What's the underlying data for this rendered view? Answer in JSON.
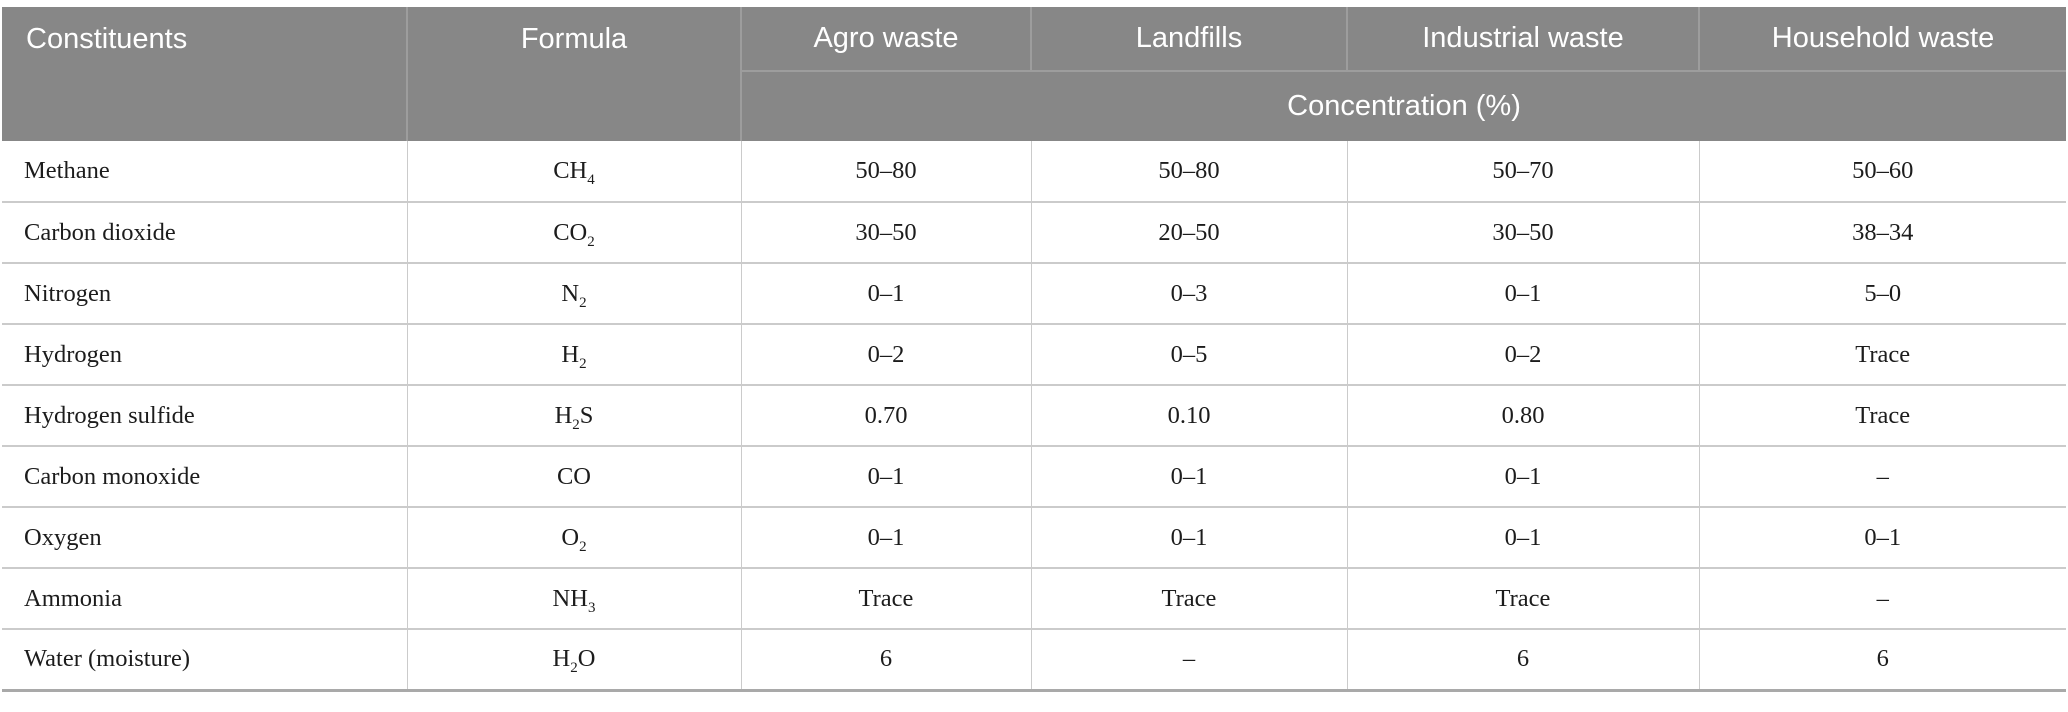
{
  "colors": {
    "header-bg": "#878787",
    "header-divider": "#9d9d9d",
    "header-text": "#ffffff",
    "body-text": "#1c1c1c",
    "grid-line": "#cbcbcb",
    "bottom-border": "#a9a9a9",
    "page-bg": "#ffffff"
  },
  "table": {
    "columns": [
      "Constituents",
      "Formula",
      "Agro waste",
      "Landfills",
      "Industrial waste",
      "Household waste"
    ],
    "subheader": "Concentration (%)",
    "rows": [
      {
        "constituent": "Methane",
        "formula": [
          {
            "t": "CH"
          },
          {
            "t": "4",
            "sub": true
          }
        ],
        "values": [
          "50–80",
          "50–80",
          "50–70",
          "50–60"
        ]
      },
      {
        "constituent": "Carbon dioxide",
        "formula": [
          {
            "t": "CO"
          },
          {
            "t": "2",
            "sub": true
          }
        ],
        "values": [
          "30–50",
          "20–50",
          "30–50",
          "38–34"
        ]
      },
      {
        "constituent": "Nitrogen",
        "formula": [
          {
            "t": "N"
          },
          {
            "t": "2",
            "sub": true
          }
        ],
        "values": [
          "0–1",
          "0–3",
          "0–1",
          "5–0"
        ]
      },
      {
        "constituent": "Hydrogen",
        "formula": [
          {
            "t": "H"
          },
          {
            "t": "2",
            "sub": true
          }
        ],
        "values": [
          "0–2",
          "0–5",
          "0–2",
          "Trace"
        ]
      },
      {
        "constituent": "Hydrogen sulfide",
        "formula": [
          {
            "t": "H"
          },
          {
            "t": "2",
            "sub": true
          },
          {
            "t": "S"
          }
        ],
        "values": [
          "0.70",
          "0.10",
          "0.80",
          "Trace"
        ]
      },
      {
        "constituent": "Carbon monoxide",
        "formula": [
          {
            "t": "CO"
          }
        ],
        "values": [
          "0–1",
          "0–1",
          "0–1",
          "–"
        ]
      },
      {
        "constituent": "Oxygen",
        "formula": [
          {
            "t": "O"
          },
          {
            "t": "2",
            "sub": true
          }
        ],
        "values": [
          "0–1",
          "0–1",
          "0–1",
          "0–1"
        ]
      },
      {
        "constituent": "Ammonia",
        "formula": [
          {
            "t": "NH"
          },
          {
            "t": "3",
            "sub": true
          }
        ],
        "values": [
          "Trace",
          "Trace",
          "Trace",
          "–"
        ]
      },
      {
        "constituent": "Water (moisture)",
        "formula": [
          {
            "t": "H"
          },
          {
            "t": "2",
            "sub": true
          },
          {
            "t": "O"
          }
        ],
        "values": [
          "6",
          "–",
          "6",
          "6"
        ]
      }
    ]
  }
}
